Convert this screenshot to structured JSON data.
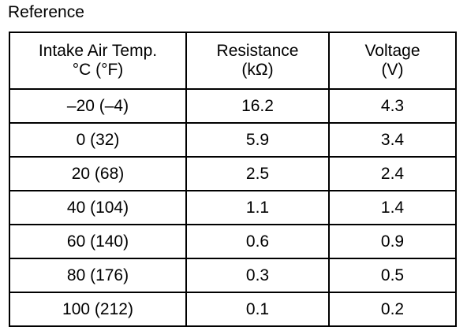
{
  "caption": "Reference",
  "table": {
    "headers": [
      {
        "line1": "Intake Air Temp.",
        "line2": "°C (°F)"
      },
      {
        "line1": "Resistance",
        "line2": "(kΩ)"
      },
      {
        "line1": "Voltage",
        "line2": "(V)"
      }
    ],
    "rows": [
      [
        "–20 (–4)",
        "16.2",
        "4.3"
      ],
      [
        "0 (32)",
        "5.9",
        "3.4"
      ],
      [
        "20 (68)",
        "2.5",
        "2.4"
      ],
      [
        "40 (104)",
        "1.1",
        "1.4"
      ],
      [
        "60 (140)",
        "0.6",
        "0.9"
      ],
      [
        "80 (176)",
        "0.3",
        "0.5"
      ],
      [
        "100 (212)",
        "0.1",
        "0.2"
      ]
    ]
  }
}
